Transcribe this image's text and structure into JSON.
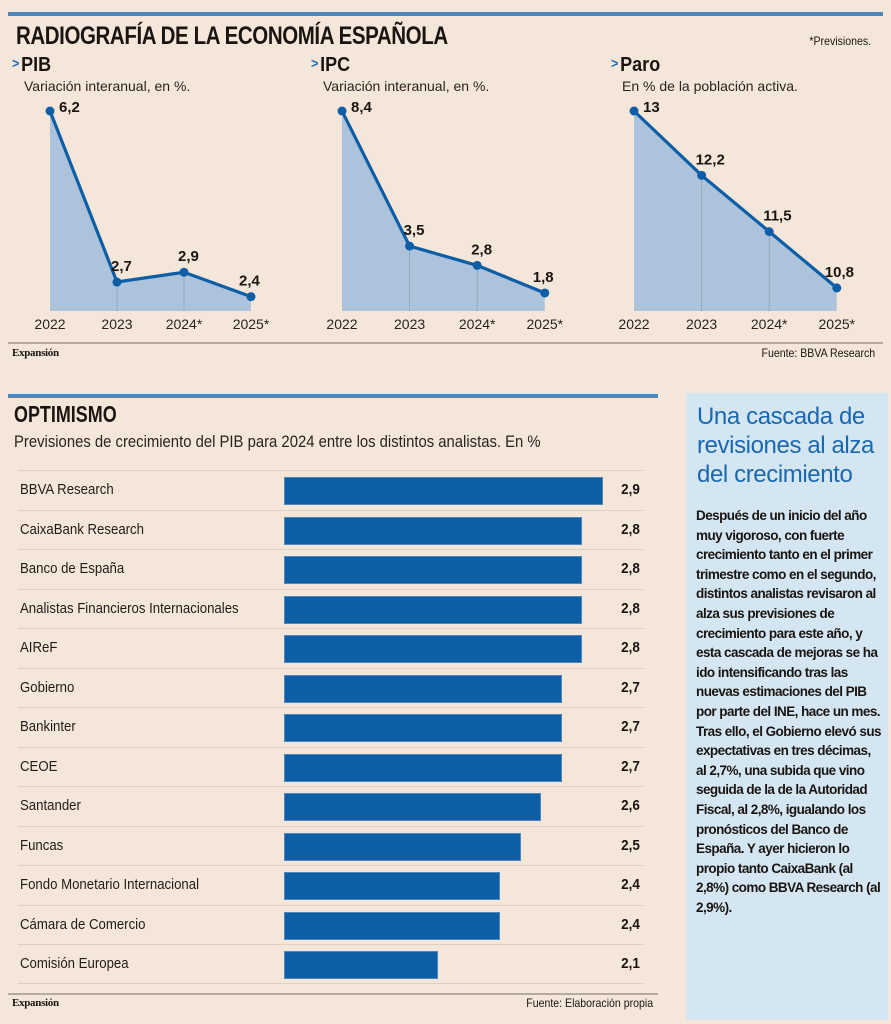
{
  "header": {
    "title": "RADIOGRAFÍA DE LA ECONOMÍA ESPAÑOLA",
    "note": "*Previsiones."
  },
  "colors": {
    "accent_blue": "#4f86c0",
    "bar_blue": "#0e5ea6",
    "line_blue": "#0e5ea6",
    "area_fill": "#adc3dc",
    "background": "#f5e6da",
    "sidebar_bg": "#d3e6f2",
    "sidebar_title": "#1a68b0"
  },
  "chart_data": [
    {
      "type": "area",
      "title": "PIB",
      "subtitle": "Variación interanual, en %.",
      "categories": [
        "2022",
        "2023",
        "2024*",
        "2025*"
      ],
      "values": [
        6.2,
        2.7,
        2.9,
        2.4
      ],
      "value_labels": [
        "6,2",
        "2,7",
        "2,9",
        "2,4"
      ],
      "ylim": [
        2.25,
        6.2
      ],
      "grid": false
    },
    {
      "type": "area",
      "title": "IPC",
      "subtitle": "Variación interanual, en %.",
      "categories": [
        "2022",
        "2023",
        "2024*",
        "2025*"
      ],
      "values": [
        8.4,
        3.5,
        2.8,
        1.8
      ],
      "value_labels": [
        "8,4",
        "3,5",
        "2,8",
        "1,8"
      ],
      "ylim": [
        1.4,
        8.4
      ],
      "grid": false
    },
    {
      "type": "area",
      "title": "Paro",
      "subtitle": "En % de la población activa.",
      "categories": [
        "2022",
        "2023",
        "2024*",
        "2025*"
      ],
      "values": [
        13,
        12.2,
        11.5,
        10.8
      ],
      "value_labels": [
        "13",
        "12,2",
        "11,5",
        "10,8"
      ],
      "ylim": [
        10.6,
        13
      ],
      "grid": false
    },
    {
      "type": "bar",
      "orientation": "horizontal",
      "title": "OPTIMISMO",
      "subtitle": "Previsiones de crecimiento del PIB para 2024 entre los distintos analistas. En %",
      "categories": [
        "BBVA Research",
        "CaixaBank Research",
        "Banco de España",
        "Analistas Financieros Internacionales",
        "AIReF",
        "Gobierno",
        "Bankinter",
        "CEOE",
        "Santander",
        "Funcas",
        "Fondo Monetario Internacional",
        "Cámara de Comercio",
        "Comisión Europea"
      ],
      "values": [
        2.9,
        2.8,
        2.8,
        2.8,
        2.8,
        2.7,
        2.7,
        2.7,
        2.6,
        2.5,
        2.4,
        2.4,
        2.1
      ],
      "value_labels": [
        "2,9",
        "2,8",
        "2,8",
        "2,8",
        "2,8",
        "2,7",
        "2,7",
        "2,7",
        "2,6",
        "2,5",
        "2,4",
        "2,4",
        "2,1"
      ],
      "xlim": [
        1.35,
        2.9
      ],
      "grid": false
    }
  ],
  "footer_top": {
    "brand": "Expansión",
    "source": "Fuente: BBVA Research"
  },
  "footer_bottom": {
    "brand": "Expansión",
    "source": "Fuente: Elaboración propia"
  },
  "sidebar": {
    "title": "Una cascada de revisiones al alza del crecimiento",
    "body": "Después de un inicio del año muy vigoroso, con fuerte crecimiento tanto en el primer trimestre como en el segundo, distintos analistas revisaron al alza sus previsiones de crecimiento para este año, y esta cascada de mejoras se ha ido intensificando tras las nuevas estimaciones del PIB por parte del INE, hace un mes. Tras ello, el Gobierno elevó sus expectativas en tres décimas, al 2,7%, una subida que vino seguida de la de la Autoridad Fiscal, al 2,8%, igualando los pronósticos del Banco de España. Y ayer hicieron lo propio tanto CaixaBank (al 2,8%) como BBVA Research (al 2,9%)."
  }
}
